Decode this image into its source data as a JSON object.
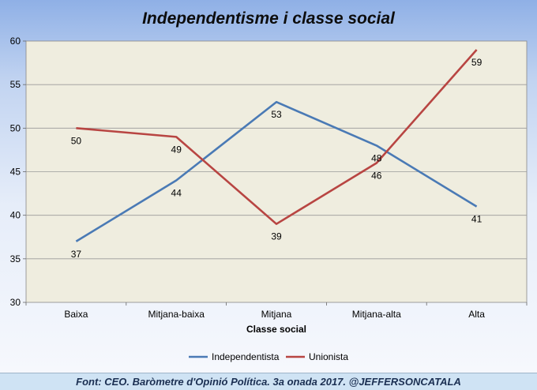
{
  "chart_data": {
    "type": "line",
    "title": "Independentisme i classe social",
    "xlabel": "Classe social",
    "ylabel": "",
    "categories": [
      "Baixa",
      "Mitjana-baixa",
      "Mitjana",
      "Mitjana-alta",
      "Alta"
    ],
    "ylim": [
      30,
      60
    ],
    "yticks": [
      30,
      35,
      40,
      45,
      50,
      55,
      60
    ],
    "grid": true,
    "legend": "bottom",
    "series": [
      {
        "name": "Independentista",
        "color": "#4a7ab5",
        "values": [
          37,
          44,
          53,
          48,
          41
        ]
      },
      {
        "name": "Unionista",
        "color": "#b84542",
        "values": [
          50,
          49,
          39,
          46,
          59
        ]
      }
    ]
  },
  "colors": {
    "plot_background": "#efeddf",
    "gridline": "#9a9a9a"
  },
  "footer": {
    "text": "Font: CEO. Baròmetre d'Opinió Política. 3a onada 2017. @JEFFERSONCATALA"
  }
}
